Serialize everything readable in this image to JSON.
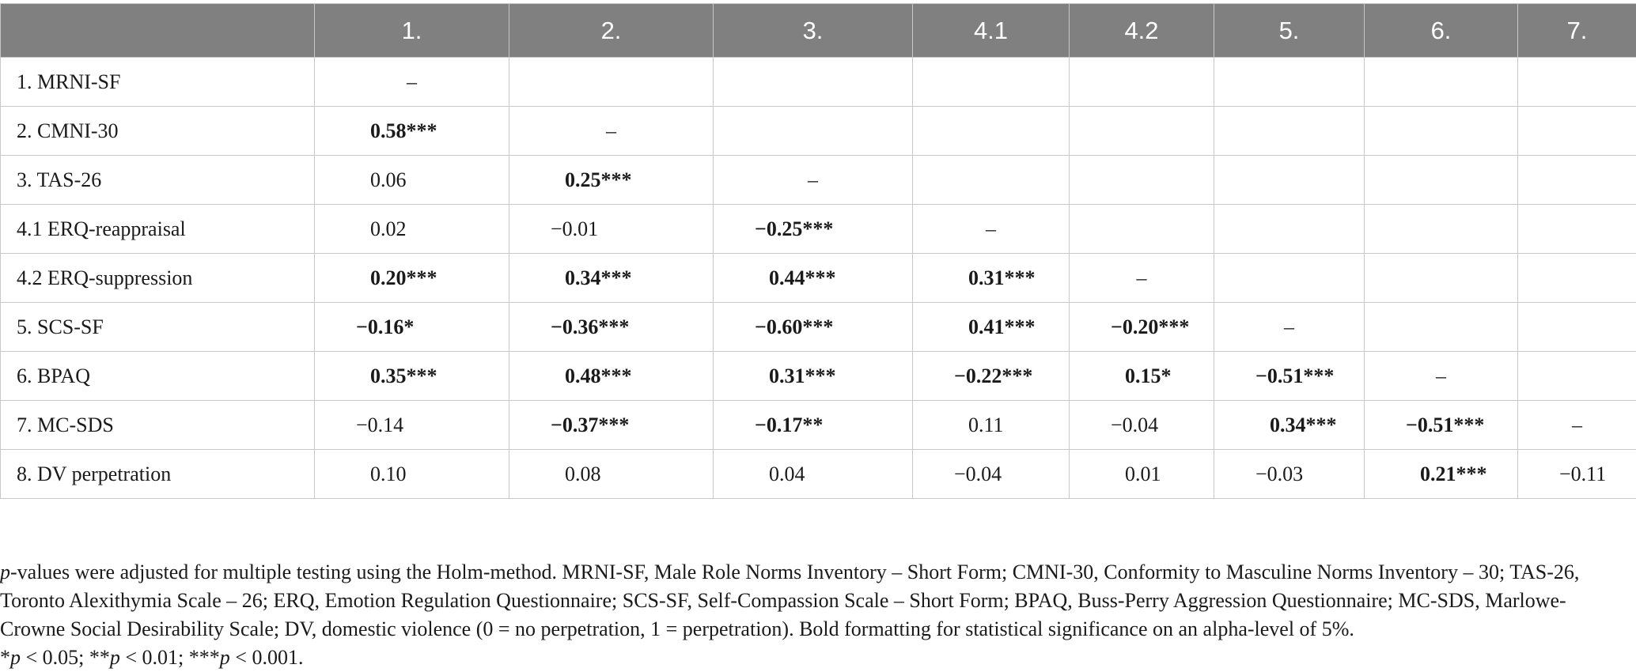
{
  "table": {
    "header": [
      "",
      "1.",
      "2.",
      "3.",
      "4.1",
      "4.2",
      "5.",
      "6.",
      "7."
    ],
    "rows": [
      {
        "label": "1. MRNI-SF",
        "cells": [
          {
            "v": "–",
            "t": "dash"
          },
          {
            "v": "",
            "t": "empty"
          },
          {
            "v": "",
            "t": "empty"
          },
          {
            "v": "",
            "t": "empty"
          },
          {
            "v": "",
            "t": "empty"
          },
          {
            "v": "",
            "t": "empty"
          },
          {
            "v": "",
            "t": "empty"
          },
          {
            "v": "",
            "t": "empty"
          }
        ]
      },
      {
        "label": "2. CMNI-30",
        "cells": [
          {
            "v": "0.58***",
            "t": "sig"
          },
          {
            "v": "–",
            "t": "dash"
          },
          {
            "v": "",
            "t": "empty"
          },
          {
            "v": "",
            "t": "empty"
          },
          {
            "v": "",
            "t": "empty"
          },
          {
            "v": "",
            "t": "empty"
          },
          {
            "v": "",
            "t": "empty"
          },
          {
            "v": "",
            "t": "empty"
          }
        ]
      },
      {
        "label": "3. TAS-26",
        "cells": [
          {
            "v": "0.06",
            "t": "plain"
          },
          {
            "v": "0.25***",
            "t": "sig"
          },
          {
            "v": "–",
            "t": "dash"
          },
          {
            "v": "",
            "t": "empty"
          },
          {
            "v": "",
            "t": "empty"
          },
          {
            "v": "",
            "t": "empty"
          },
          {
            "v": "",
            "t": "empty"
          },
          {
            "v": "",
            "t": "empty"
          }
        ]
      },
      {
        "label": "4.1 ERQ-reappraisal",
        "cells": [
          {
            "v": "0.02",
            "t": "plain"
          },
          {
            "v": "−0.01",
            "t": "plain"
          },
          {
            "v": "−0.25***",
            "t": "sig"
          },
          {
            "v": "–",
            "t": "dash"
          },
          {
            "v": "",
            "t": "empty"
          },
          {
            "v": "",
            "t": "empty"
          },
          {
            "v": "",
            "t": "empty"
          },
          {
            "v": "",
            "t": "empty"
          }
        ]
      },
      {
        "label": "4.2 ERQ-suppression",
        "cells": [
          {
            "v": "0.20***",
            "t": "sig"
          },
          {
            "v": "0.34***",
            "t": "sig"
          },
          {
            "v": "0.44***",
            "t": "sig"
          },
          {
            "v": "0.31***",
            "t": "sig"
          },
          {
            "v": "–",
            "t": "dash"
          },
          {
            "v": "",
            "t": "empty"
          },
          {
            "v": "",
            "t": "empty"
          },
          {
            "v": "",
            "t": "empty"
          }
        ]
      },
      {
        "label": "5. SCS-SF",
        "cells": [
          {
            "v": "−0.16*",
            "t": "sig"
          },
          {
            "v": "−0.36***",
            "t": "sig"
          },
          {
            "v": "−0.60***",
            "t": "sig"
          },
          {
            "v": "0.41***",
            "t": "sig"
          },
          {
            "v": "−0.20***",
            "t": "sig"
          },
          {
            "v": "–",
            "t": "dash"
          },
          {
            "v": "",
            "t": "empty"
          },
          {
            "v": "",
            "t": "empty"
          }
        ]
      },
      {
        "label": "6. BPAQ",
        "cells": [
          {
            "v": "0.35***",
            "t": "sig"
          },
          {
            "v": "0.48***",
            "t": "sig"
          },
          {
            "v": "0.31***",
            "t": "sig"
          },
          {
            "v": "−0.22***",
            "t": "sig"
          },
          {
            "v": "0.15*",
            "t": "sig"
          },
          {
            "v": "−0.51***",
            "t": "sig"
          },
          {
            "v": "–",
            "t": "dash"
          },
          {
            "v": "",
            "t": "empty"
          }
        ]
      },
      {
        "label": "7. MC-SDS",
        "cells": [
          {
            "v": "−0.14",
            "t": "plain"
          },
          {
            "v": "−0.37***",
            "t": "sig"
          },
          {
            "v": "−0.17**",
            "t": "sig"
          },
          {
            "v": "0.11",
            "t": "plain"
          },
          {
            "v": "−0.04",
            "t": "plain"
          },
          {
            "v": "0.34***",
            "t": "sig"
          },
          {
            "v": "−0.51***",
            "t": "sig"
          },
          {
            "v": "–",
            "t": "dash"
          }
        ]
      },
      {
        "label": "8. DV perpetration",
        "cells": [
          {
            "v": "0.10",
            "t": "plain"
          },
          {
            "v": "0.08",
            "t": "plain"
          },
          {
            "v": "0.04",
            "t": "plain"
          },
          {
            "v": "−0.04",
            "t": "plain"
          },
          {
            "v": "0.01",
            "t": "plain"
          },
          {
            "v": "−0.03",
            "t": "plain"
          },
          {
            "v": "0.21***",
            "t": "sig"
          },
          {
            "v": "−0.11",
            "t": "plain"
          }
        ]
      }
    ]
  },
  "note": {
    "line1_italic": "p",
    "line1_rest": "-values were adjusted for multiple testing using the Holm-method. MRNI-SF, Male Role Norms Inventory – Short Form; CMNI-30, Conformity to Masculine Norms Inventory – 30; TAS-26, Toronto Alexithymia Scale – 26; ERQ, Emotion Regulation Questionnaire; SCS-SF, Self-Compassion Scale – Short Form; BPAQ, Buss-Perry Aggression Questionnaire; MC-SDS, Marlowe-Crowne Social Desirability Scale; DV, domestic violence (0 = no perpetration, 1 = perpetration). Bold formatting for statistical significance on an alpha-level of 5%.",
    "sig_parts": [
      {
        "text": "*",
        "italic": false
      },
      {
        "text": "p",
        "italic": true
      },
      {
        "text": " < 0.05; **",
        "italic": false
      },
      {
        "text": "p",
        "italic": true
      },
      {
        "text": " < 0.01; ***",
        "italic": false
      },
      {
        "text": "p",
        "italic": true
      },
      {
        "text": " < 0.001.",
        "italic": false
      }
    ]
  }
}
